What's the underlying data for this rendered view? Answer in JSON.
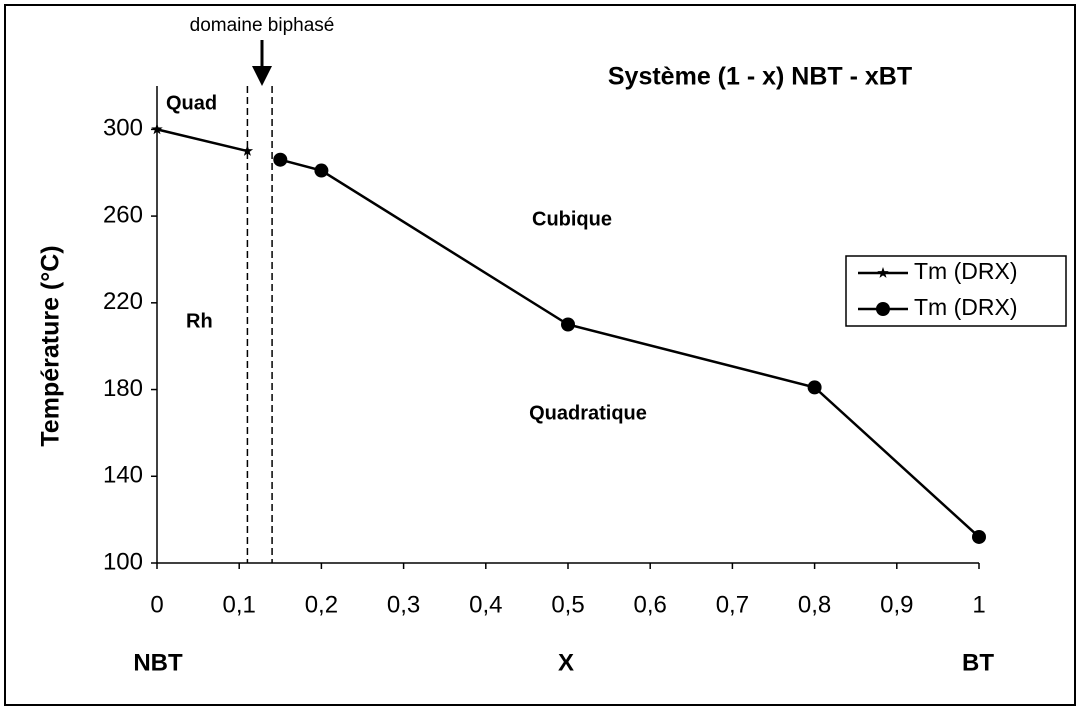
{
  "chart_data": {
    "type": "line",
    "title": "Système (1 - x) NBT - xBT",
    "ylabel": "Température (°C)",
    "annotations": {
      "biphase": "domaine biphasé",
      "quad": "Quad",
      "rh": "Rh",
      "cubique": "Cubique",
      "quadratique": "Quadratique",
      "left": "NBT",
      "middle": "X",
      "right": "BT"
    },
    "phase_boundaries": [
      0.11,
      0.14
    ],
    "xlim": [
      0,
      1
    ],
    "ylim": [
      100,
      320
    ],
    "xticks": [
      0,
      {
        "value": 0.1,
        "label": "0,1"
      },
      {
        "value": 0.2,
        "label": "0,2"
      },
      {
        "value": 0.3,
        "label": "0,3"
      },
      {
        "value": 0.4,
        "label": "0,4"
      },
      {
        "value": 0.5,
        "label": "0,5"
      },
      {
        "value": 0.6,
        "label": "0,6"
      },
      {
        "value": 0.7,
        "label": "0,7"
      },
      {
        "value": 0.8,
        "label": "0,8"
      },
      {
        "value": 0.9,
        "label": "0,9"
      },
      1
    ],
    "yticks": [
      100,
      140,
      180,
      220,
      260,
      300
    ],
    "series": [
      {
        "name": "Tm (DRX)",
        "color": "#000000",
        "marker": "star",
        "x": [
          0,
          0.11
        ],
        "values": [
          300,
          290
        ]
      },
      {
        "name": "Tm (DRX)",
        "color": "#000000",
        "marker": "circle",
        "x": [
          0.15,
          0.2,
          0.5,
          0.8,
          1
        ],
        "values": [
          286,
          281,
          210,
          181,
          112
        ]
      }
    ]
  }
}
